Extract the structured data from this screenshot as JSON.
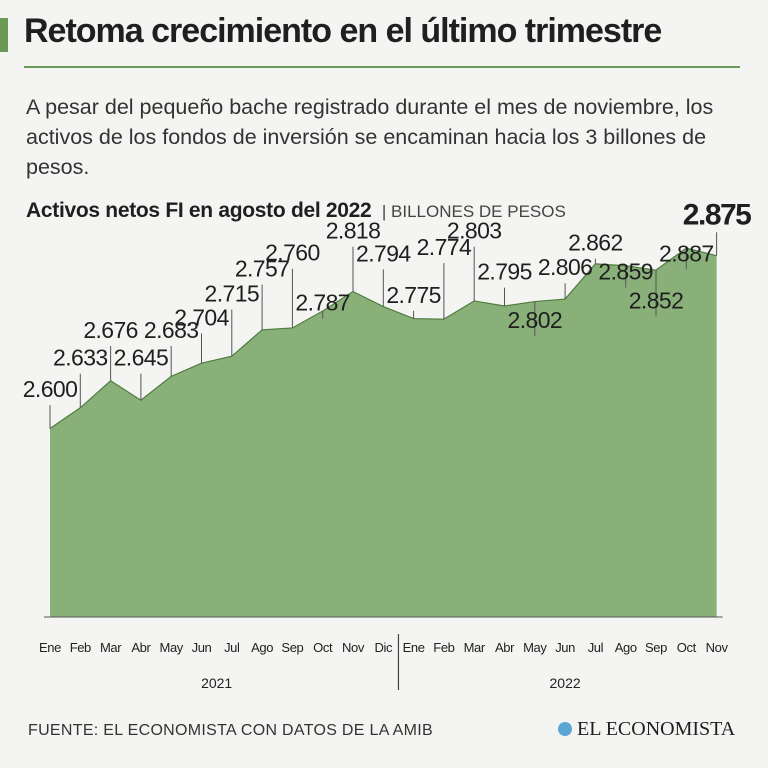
{
  "header": {
    "title": "Retoma crecimiento en el último trimestre",
    "subtitle": "A pesar del pequeño bache registrado durante el mes de noviembre, los activos de los fondos de inversión se encaminan hacia los 3 billones de pesos."
  },
  "chart_heading": {
    "title": "Activos netos FI en agosto del 2022",
    "unit": "| BILLONES DE PESOS"
  },
  "footer": {
    "source": "FUENTE: EL ECONOMISTA CON DATOS DE LA AMIB",
    "brand": "EL ECONOMISTA",
    "brand_icon": "globe-icon"
  },
  "colors": {
    "fill": "#8ab07a",
    "stroke": "#4f7d3e",
    "accent": "#6a9a55",
    "text": "#222222"
  },
  "chart_data": {
    "type": "area",
    "title": "Activos netos FI en agosto del 2022",
    "ylabel": "BILLONES DE PESOS",
    "ylim": [
      2.3,
      2.9
    ],
    "grid": false,
    "categories": [
      "Ene",
      "Feb",
      "Mar",
      "Abr",
      "May",
      "Jun",
      "Jul",
      "Ago",
      "Sep",
      "Oct",
      "Nov",
      "Dic",
      "Ene",
      "Feb",
      "Mar",
      "Abr",
      "May",
      "Jun",
      "Jul",
      "Ago",
      "Sep",
      "Oct",
      "Nov"
    ],
    "years": [
      {
        "label": "2021",
        "start": 0,
        "end": 11
      },
      {
        "label": "2022",
        "start": 12,
        "end": 22
      }
    ],
    "values": [
      2.6,
      2.633,
      2.676,
      2.645,
      2.683,
      2.704,
      2.715,
      2.757,
      2.76,
      2.787,
      2.818,
      2.794,
      2.775,
      2.774,
      2.803,
      2.795,
      2.802,
      2.806,
      2.862,
      2.859,
      2.852,
      2.887,
      2.875
    ],
    "labels": [
      "2.600",
      "2.633",
      "2.676",
      "2.645",
      "2.683",
      "2.704",
      "2.715",
      "2.757",
      "2.760",
      "2.787",
      "2.818",
      "2.794",
      "2.775",
      "2.774",
      "2.803",
      "2.795",
      "2.802",
      "2.806",
      "2.862",
      "2.859",
      "2.852",
      "2.887",
      "2.875"
    ],
    "label_levels": [
      2.65,
      2.7,
      2.744,
      2.7,
      2.744,
      2.764,
      2.802,
      2.842,
      2.867,
      2.788,
      2.902,
      2.866,
      2.8,
      2.876,
      2.902,
      2.837,
      2.76,
      2.844,
      2.883,
      2.837,
      2.791,
      2.866,
      2.925
    ],
    "highlight_index": 22
  }
}
